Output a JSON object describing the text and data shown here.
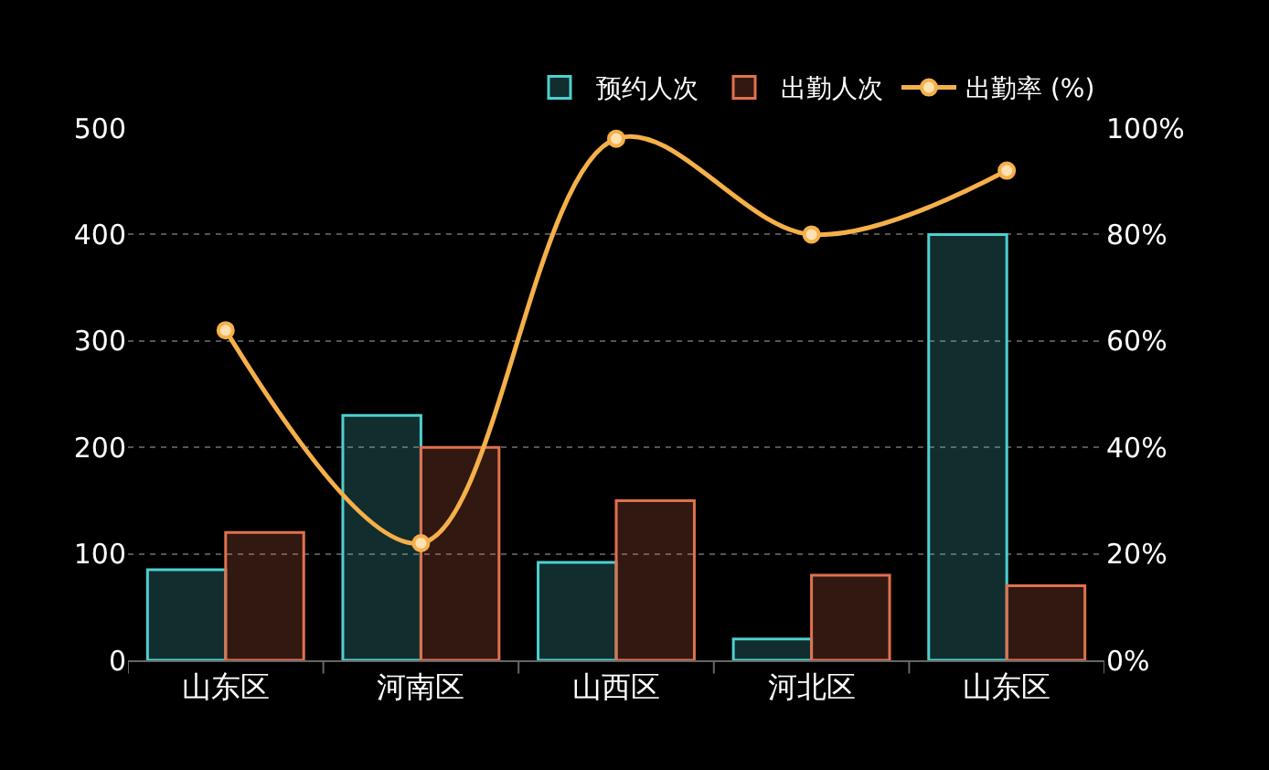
{
  "chart_data": {
    "type": "bar",
    "categories": [
      "山东区",
      "河南区",
      "山西区",
      "河北区",
      "山东区"
    ],
    "series": [
      {
        "name": "预约人次",
        "color": "#4ecfd0",
        "values": [
          85,
          230,
          92,
          20,
          400
        ]
      },
      {
        "name": "出勤人次",
        "color": "#e0714f",
        "values": [
          120,
          200,
          150,
          80,
          70
        ]
      },
      {
        "name": "出勤率 (%)",
        "color": "#f5b04a",
        "type": "line",
        "axis": "y2",
        "values": [
          62,
          22,
          98,
          80,
          92
        ]
      }
    ],
    "ylim": [
      0,
      500
    ],
    "yticks": [
      0,
      100,
      200,
      300,
      400,
      500
    ],
    "y2lim": [
      0,
      100
    ],
    "y2ticks": [
      {
        "value": 0,
        "label": "0%"
      },
      {
        "value": 20,
        "label": "20%"
      },
      {
        "value": 40,
        "label": "40%"
      },
      {
        "value": 60,
        "label": "60%"
      },
      {
        "value": 80,
        "label": "80%"
      },
      {
        "value": 100,
        "label": "100%"
      }
    ],
    "grid": "y",
    "legend": "top right",
    "marker": "circle",
    "line_style": "solid"
  }
}
